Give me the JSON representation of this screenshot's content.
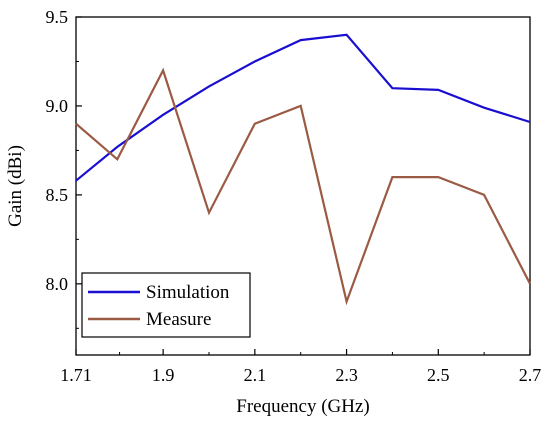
{
  "chart_data": {
    "type": "line",
    "title": "",
    "xlabel": "Frequency (GHz)",
    "ylabel": "Gain (dBi)",
    "xlim": [
      1.71,
      2.7
    ],
    "ylim": [
      7.6,
      9.5
    ],
    "xticks": [
      1.71,
      1.9,
      2.1,
      2.3,
      2.5,
      2.7
    ],
    "xtick_labels": [
      "1.71",
      "1.9",
      "2.1",
      "2.3",
      "2.5",
      "2.7"
    ],
    "yticks": [
      8.0,
      8.5,
      9.0,
      9.5
    ],
    "ytick_labels": [
      "8.0",
      "8.5",
      "9.0",
      "9.5"
    ],
    "grid": false,
    "legend_position": "bottom-left",
    "series": [
      {
        "name": "Simulation",
        "color": "#1a0fd1",
        "x": [
          1.71,
          1.8,
          1.9,
          2.0,
          2.1,
          2.2,
          2.3,
          2.4,
          2.5,
          2.6,
          2.7
        ],
        "y": [
          8.58,
          8.77,
          8.95,
          9.11,
          9.25,
          9.37,
          9.4,
          9.1,
          9.09,
          8.99,
          8.91
        ]
      },
      {
        "name": "Measure",
        "color": "#9b5a44",
        "x": [
          1.71,
          1.8,
          1.9,
          2.0,
          2.1,
          2.2,
          2.3,
          2.4,
          2.5,
          2.6,
          2.7
        ],
        "y": [
          8.9,
          8.7,
          9.2,
          8.4,
          8.9,
          9.0,
          7.9,
          8.6,
          8.6,
          8.5,
          8.0
        ]
      }
    ]
  }
}
